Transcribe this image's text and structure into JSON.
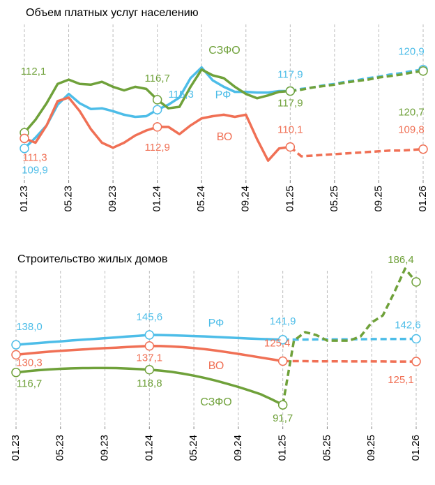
{
  "chart_data": [
    {
      "type": "line",
      "title": "Объем платных услуг населению",
      "categories": [
        "01.23",
        null,
        null,
        null,
        "05.23",
        null,
        null,
        null,
        "09.23",
        null,
        null,
        null,
        "01.24",
        null,
        null,
        null,
        "05.24",
        null,
        null,
        null,
        "09.24",
        null,
        null,
        null,
        "01.25",
        null,
        null,
        null,
        "05.25",
        null,
        null,
        null,
        "09.25",
        null,
        null,
        null,
        "01.26"
      ],
      "forecast_start": "01.25",
      "ylim": [
        105.1,
        127.2
      ],
      "grid": true,
      "series": [
        {
          "name": "РФ",
          "color": "#4dbde8",
          "values": [
            109.9,
            111.4,
            113.1,
            116.0,
            117.5,
            116.2,
            115.4,
            115.5,
            115.1,
            114.6,
            114.3,
            114.4,
            115.3,
            116.0,
            117.0,
            119.7,
            121.2,
            119.4,
            118.5,
            117.8,
            117.8,
            117.7,
            117.7,
            117.9,
            117.9,
            118.2,
            118.4,
            118.7,
            118.9,
            119.2,
            119.4,
            119.7,
            119.9,
            120.2,
            120.4,
            120.7,
            120.9
          ],
          "value_labels": [
            "109,9",
            null,
            null,
            null,
            null,
            null,
            null,
            null,
            null,
            null,
            null,
            null,
            "115,3",
            null,
            null,
            null,
            null,
            null,
            null,
            null,
            null,
            null,
            null,
            null,
            "117,9",
            null,
            null,
            null,
            null,
            null,
            null,
            null,
            null,
            null,
            null,
            null,
            "120,9"
          ]
        },
        {
          "name": "СЗФО",
          "color": "#6fa13a",
          "values": [
            112.1,
            113.9,
            116.2,
            118.9,
            119.5,
            118.9,
            118.8,
            119.2,
            118.5,
            118.0,
            118.5,
            118.2,
            116.7,
            115.5,
            115.7,
            118.5,
            120.9,
            120.1,
            119.7,
            118.5,
            117.5,
            116.9,
            117.3,
            117.8,
            117.9,
            118.1,
            118.4,
            118.6,
            118.8,
            119.1,
            119.3,
            119.5,
            119.8,
            120.0,
            120.2,
            120.5,
            120.7
          ],
          "value_labels": [
            "112,1",
            null,
            null,
            null,
            null,
            null,
            null,
            null,
            null,
            null,
            null,
            null,
            "116,7",
            null,
            null,
            null,
            null,
            null,
            null,
            null,
            null,
            null,
            null,
            null,
            "117,9",
            null,
            null,
            null,
            null,
            null,
            null,
            null,
            null,
            null,
            null,
            null,
            "120,7"
          ]
        },
        {
          "name": "ВО",
          "color": "#f07055",
          "values": [
            111.3,
            110.7,
            113.1,
            116.5,
            117.0,
            115.1,
            112.6,
            110.7,
            110.0,
            110.7,
            111.7,
            112.4,
            112.9,
            112.9,
            111.9,
            113.1,
            114.1,
            114.4,
            114.6,
            114.3,
            114.6,
            111.2,
            108.2,
            109.9,
            110.1,
            108.8,
            108.9,
            109.0,
            109.1,
            109.2,
            109.3,
            109.4,
            109.5,
            109.6,
            109.6,
            109.7,
            109.8
          ],
          "value_labels": [
            "111,3",
            null,
            null,
            null,
            null,
            null,
            null,
            null,
            null,
            null,
            null,
            null,
            "112,9",
            null,
            null,
            null,
            null,
            null,
            null,
            null,
            null,
            null,
            null,
            null,
            "110,1",
            null,
            null,
            null,
            null,
            null,
            null,
            null,
            null,
            null,
            null,
            null,
            "109,8"
          ]
        }
      ]
    },
    {
      "type": "line",
      "title": "Строительство жилых домов",
      "categories": [
        "01.23",
        null,
        null,
        null,
        "05.23",
        null,
        null,
        null,
        "09.23",
        null,
        null,
        null,
        "01.24",
        null,
        null,
        null,
        "05.24",
        null,
        null,
        null,
        "09.24",
        null,
        null,
        null,
        "01.25",
        null,
        null,
        null,
        "05.25",
        null,
        null,
        null,
        "09.25",
        null,
        null,
        null,
        "01.26"
      ],
      "forecast_start": "01.25",
      "ylim": [
        73,
        195
      ],
      "grid": true,
      "series": [
        {
          "name": "РФ",
          "color": "#4dbde8",
          "values": [
            138.0,
            138.7,
            139.3,
            140.0,
            140.6,
            141.3,
            141.9,
            142.5,
            143.1,
            143.7,
            144.3,
            144.9,
            145.6,
            145.5,
            145.3,
            145.0,
            144.7,
            144.4,
            144.0,
            143.6,
            143.2,
            142.8,
            142.5,
            142.2,
            141.9,
            142.0,
            142.0,
            142.1,
            142.1,
            142.2,
            142.2,
            142.3,
            142.4,
            142.4,
            142.5,
            142.5,
            142.6
          ],
          "value_labels": [
            "138,0",
            null,
            null,
            null,
            null,
            null,
            null,
            null,
            null,
            null,
            null,
            null,
            "145,6",
            null,
            null,
            null,
            null,
            null,
            null,
            null,
            null,
            null,
            null,
            null,
            "141,9",
            null,
            null,
            null,
            null,
            null,
            null,
            null,
            null,
            null,
            null,
            null,
            "142,6"
          ]
        },
        {
          "name": "ВО",
          "color": "#f07055",
          "values": [
            130.3,
            131.2,
            132.0,
            132.7,
            133.3,
            133.9,
            134.4,
            134.9,
            135.4,
            135.8,
            136.3,
            136.7,
            137.1,
            137.0,
            136.7,
            136.2,
            135.5,
            134.6,
            133.5,
            132.3,
            131.0,
            129.6,
            128.2,
            126.8,
            125.4,
            125.4,
            125.4,
            125.3,
            125.3,
            125.3,
            125.2,
            125.2,
            125.2,
            125.2,
            125.1,
            125.1,
            125.1
          ],
          "value_labels": [
            "130,3",
            null,
            null,
            null,
            null,
            null,
            null,
            null,
            null,
            null,
            null,
            null,
            "137,1",
            null,
            null,
            null,
            null,
            null,
            null,
            null,
            null,
            null,
            null,
            null,
            "125,4",
            null,
            null,
            null,
            null,
            null,
            null,
            null,
            null,
            null,
            null,
            null,
            "125,1"
          ]
        },
        {
          "name": "СЗФО",
          "color": "#6fa13a",
          "values": [
            116.7,
            117.6,
            118.4,
            119.0,
            119.5,
            119.8,
            120.0,
            120.1,
            120.1,
            120.0,
            119.7,
            119.3,
            118.8,
            118.1,
            117.1,
            115.8,
            114.2,
            112.4,
            110.3,
            108.0,
            105.5,
            102.8,
            99.9,
            96.0,
            91.7,
            141.2,
            147.7,
            145.5,
            141.2,
            141.2,
            141.2,
            144.5,
            155.2,
            160.6,
            177.8,
            196.6,
            186.4
          ],
          "value_labels": [
            "116,7",
            null,
            null,
            null,
            null,
            null,
            null,
            null,
            null,
            null,
            null,
            null,
            "118,8",
            null,
            null,
            null,
            null,
            null,
            null,
            null,
            null,
            null,
            null,
            null,
            "91,7",
            null,
            null,
            null,
            null,
            null,
            null,
            null,
            null,
            null,
            null,
            null,
            "186,4"
          ]
        }
      ]
    }
  ]
}
